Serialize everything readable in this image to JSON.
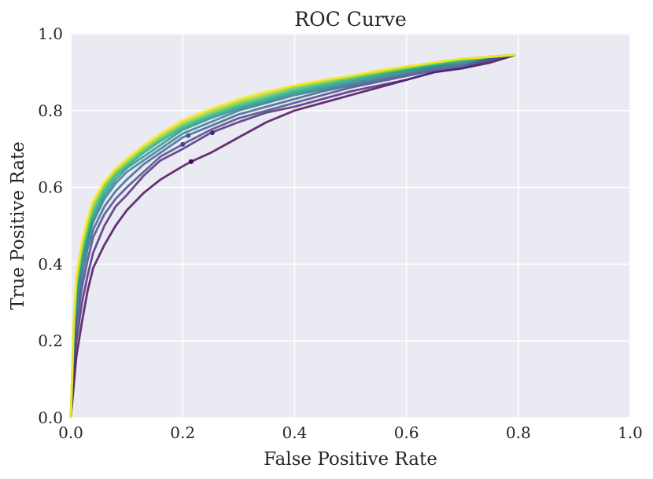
{
  "chart_data": {
    "type": "line",
    "title": "ROC Curve",
    "xlabel": "False Positive Rate",
    "ylabel": "True Positive Rate",
    "xlim": [
      0.0,
      1.0
    ],
    "ylim": [
      0.0,
      1.0
    ],
    "xticks": [
      "0.0",
      "0.2",
      "0.4",
      "0.6",
      "0.8",
      "1.0"
    ],
    "yticks": [
      "0.0",
      "0.2",
      "0.4",
      "0.6",
      "0.8",
      "1.0"
    ],
    "grid": true,
    "legend": "none",
    "background": "#eaeaf2",
    "grid_color": "#ffffff",
    "colors": [
      "#440154",
      "#482475",
      "#414487",
      "#355f8d",
      "#2a788e",
      "#21918c",
      "#22a884",
      "#44bf70",
      "#7ad151",
      "#bddf26",
      "#fde725"
    ],
    "series": [
      {
        "x": [
          0,
          0.005,
          0.01,
          0.02,
          0.03,
          0.04,
          0.06,
          0.08,
          0.1,
          0.13,
          0.16,
          0.2,
          0.215,
          0.25,
          0.3,
          0.35,
          0.4,
          0.45,
          0.5,
          0.55,
          0.6,
          0.65,
          0.7,
          0.75,
          0.795
        ],
        "y": [
          0.0,
          0.08,
          0.16,
          0.25,
          0.33,
          0.39,
          0.45,
          0.5,
          0.54,
          0.585,
          0.62,
          0.655,
          0.667,
          0.69,
          0.73,
          0.77,
          0.8,
          0.82,
          0.84,
          0.86,
          0.88,
          0.9,
          0.91,
          0.925,
          0.945
        ],
        "marker": [
          0.215,
          0.667
        ]
      },
      {
        "x": [
          0,
          0.005,
          0.01,
          0.02,
          0.03,
          0.04,
          0.06,
          0.08,
          0.1,
          0.13,
          0.16,
          0.2,
          0.25,
          0.3,
          0.35,
          0.4,
          0.45,
          0.5,
          0.55,
          0.6,
          0.65,
          0.7,
          0.75,
          0.795
        ],
        "y": [
          0.0,
          0.12,
          0.2,
          0.3,
          0.37,
          0.43,
          0.5,
          0.55,
          0.58,
          0.63,
          0.67,
          0.7,
          0.742,
          0.77,
          0.795,
          0.81,
          0.83,
          0.85,
          0.865,
          0.88,
          0.9,
          0.91,
          0.93,
          0.945
        ],
        "marker": [
          0.253,
          0.742
        ]
      },
      {
        "x": [
          0,
          0.005,
          0.01,
          0.02,
          0.03,
          0.04,
          0.06,
          0.08,
          0.1,
          0.13,
          0.16,
          0.2,
          0.25,
          0.3,
          0.35,
          0.4,
          0.45,
          0.5,
          0.55,
          0.6,
          0.65,
          0.7,
          0.75,
          0.795
        ],
        "y": [
          0.0,
          0.15,
          0.24,
          0.34,
          0.41,
          0.47,
          0.53,
          0.57,
          0.6,
          0.64,
          0.68,
          0.712,
          0.75,
          0.78,
          0.8,
          0.82,
          0.84,
          0.86,
          0.875,
          0.89,
          0.905,
          0.915,
          0.935,
          0.945
        ],
        "marker": [
          0.2,
          0.712
        ]
      },
      {
        "x": [
          0,
          0.005,
          0.01,
          0.02,
          0.03,
          0.04,
          0.06,
          0.08,
          0.1,
          0.13,
          0.16,
          0.2,
          0.25,
          0.3,
          0.35,
          0.4,
          0.45,
          0.5,
          0.55,
          0.6,
          0.65,
          0.7,
          0.75,
          0.795
        ],
        "y": [
          0.0,
          0.17,
          0.27,
          0.37,
          0.44,
          0.49,
          0.55,
          0.59,
          0.62,
          0.66,
          0.69,
          0.73,
          0.76,
          0.79,
          0.81,
          0.83,
          0.85,
          0.865,
          0.88,
          0.895,
          0.91,
          0.92,
          0.935,
          0.945
        ],
        "marker": [
          0.21,
          0.735
        ]
      },
      {
        "x": [
          0,
          0.005,
          0.01,
          0.02,
          0.03,
          0.04,
          0.06,
          0.08,
          0.1,
          0.13,
          0.16,
          0.2,
          0.25,
          0.3,
          0.35,
          0.4,
          0.45,
          0.5,
          0.55,
          0.6,
          0.65,
          0.7,
          0.75,
          0.795
        ],
        "y": [
          0.0,
          0.19,
          0.3,
          0.4,
          0.46,
          0.51,
          0.57,
          0.61,
          0.64,
          0.67,
          0.7,
          0.74,
          0.77,
          0.8,
          0.82,
          0.84,
          0.855,
          0.87,
          0.885,
          0.9,
          0.915,
          0.925,
          0.94,
          0.945
        ]
      },
      {
        "x": [
          0,
          0.005,
          0.01,
          0.02,
          0.03,
          0.04,
          0.06,
          0.08,
          0.1,
          0.13,
          0.16,
          0.2,
          0.25,
          0.3,
          0.35,
          0.4,
          0.45,
          0.5,
          0.55,
          0.6,
          0.65,
          0.7,
          0.75,
          0.795
        ],
        "y": [
          0.0,
          0.2,
          0.32,
          0.41,
          0.47,
          0.52,
          0.58,
          0.62,
          0.65,
          0.68,
          0.71,
          0.75,
          0.78,
          0.805,
          0.825,
          0.845,
          0.86,
          0.875,
          0.89,
          0.905,
          0.915,
          0.93,
          0.94,
          0.945
        ]
      },
      {
        "x": [
          0,
          0.005,
          0.01,
          0.02,
          0.03,
          0.04,
          0.06,
          0.08,
          0.1,
          0.13,
          0.16,
          0.2,
          0.25,
          0.3,
          0.35,
          0.4,
          0.45,
          0.5,
          0.55,
          0.6,
          0.65,
          0.7,
          0.75,
          0.795
        ],
        "y": [
          0.0,
          0.21,
          0.33,
          0.42,
          0.48,
          0.53,
          0.59,
          0.63,
          0.655,
          0.69,
          0.72,
          0.755,
          0.785,
          0.81,
          0.83,
          0.85,
          0.865,
          0.88,
          0.895,
          0.905,
          0.92,
          0.93,
          0.94,
          0.945
        ]
      },
      {
        "x": [
          0,
          0.005,
          0.01,
          0.02,
          0.03,
          0.04,
          0.06,
          0.08,
          0.1,
          0.13,
          0.16,
          0.2,
          0.25,
          0.3,
          0.35,
          0.4,
          0.45,
          0.5,
          0.55,
          0.6,
          0.65,
          0.7,
          0.75,
          0.795
        ],
        "y": [
          0.0,
          0.22,
          0.34,
          0.43,
          0.49,
          0.54,
          0.6,
          0.635,
          0.66,
          0.695,
          0.725,
          0.76,
          0.79,
          0.815,
          0.835,
          0.855,
          0.87,
          0.885,
          0.895,
          0.91,
          0.92,
          0.93,
          0.94,
          0.945
        ]
      },
      {
        "x": [
          0,
          0.005,
          0.01,
          0.02,
          0.03,
          0.04,
          0.06,
          0.08,
          0.1,
          0.13,
          0.16,
          0.2,
          0.25,
          0.3,
          0.35,
          0.4,
          0.45,
          0.5,
          0.55,
          0.6,
          0.65,
          0.7,
          0.75,
          0.795
        ],
        "y": [
          0.0,
          0.23,
          0.35,
          0.44,
          0.5,
          0.55,
          0.605,
          0.64,
          0.665,
          0.7,
          0.73,
          0.765,
          0.795,
          0.82,
          0.84,
          0.86,
          0.875,
          0.885,
          0.9,
          0.91,
          0.925,
          0.935,
          0.94,
          0.945
        ]
      },
      {
        "x": [
          0,
          0.005,
          0.01,
          0.02,
          0.03,
          0.04,
          0.06,
          0.08,
          0.1,
          0.13,
          0.16,
          0.2,
          0.25,
          0.3,
          0.35,
          0.4,
          0.45,
          0.5,
          0.55,
          0.6,
          0.65,
          0.7,
          0.75,
          0.795
        ],
        "y": [
          0.0,
          0.24,
          0.36,
          0.45,
          0.51,
          0.56,
          0.61,
          0.645,
          0.67,
          0.705,
          0.735,
          0.77,
          0.8,
          0.825,
          0.845,
          0.865,
          0.875,
          0.89,
          0.9,
          0.915,
          0.925,
          0.935,
          0.94,
          0.945
        ]
      },
      {
        "x": [
          0,
          0.005,
          0.01,
          0.02,
          0.03,
          0.04,
          0.06,
          0.08,
          0.1,
          0.13,
          0.16,
          0.2,
          0.25,
          0.3,
          0.35,
          0.4,
          0.45,
          0.5,
          0.55,
          0.6,
          0.65,
          0.7,
          0.75,
          0.795
        ],
        "y": [
          0.0,
          0.25,
          0.37,
          0.46,
          0.52,
          0.565,
          0.615,
          0.65,
          0.675,
          0.71,
          0.74,
          0.775,
          0.805,
          0.83,
          0.85,
          0.865,
          0.88,
          0.89,
          0.905,
          0.915,
          0.925,
          0.935,
          0.94,
          0.945
        ]
      }
    ]
  }
}
